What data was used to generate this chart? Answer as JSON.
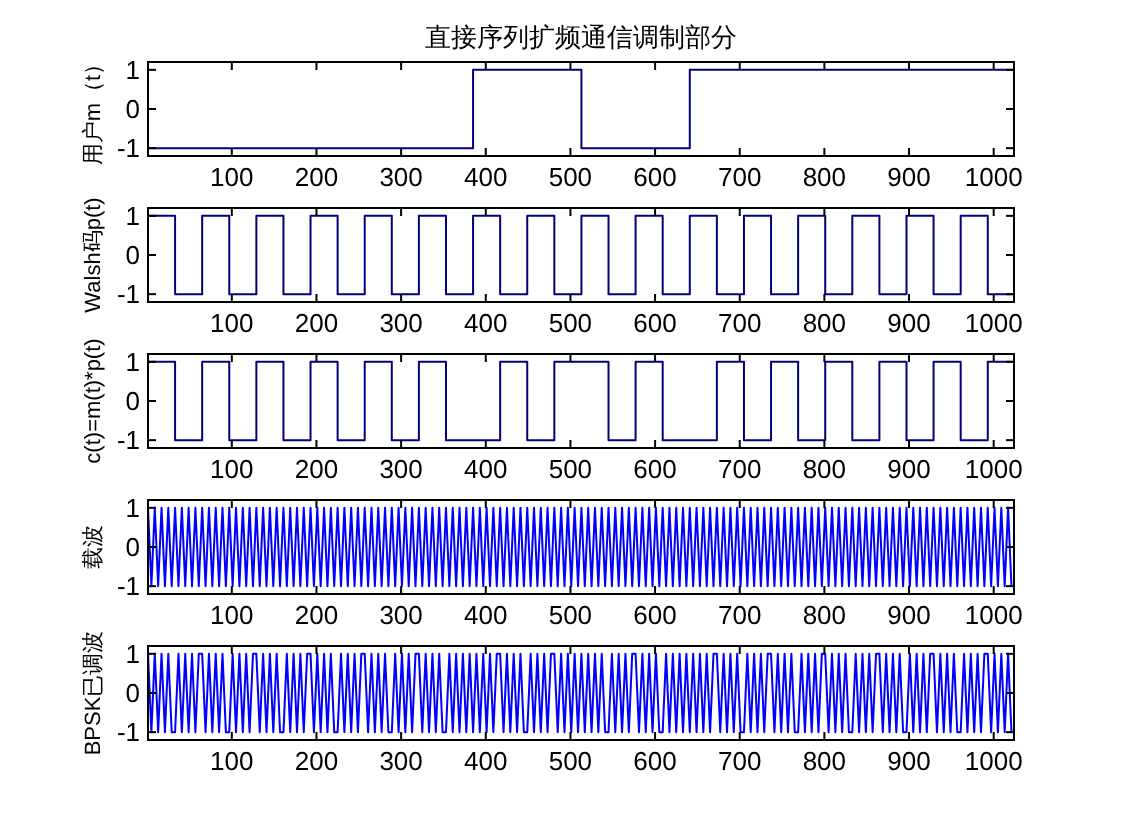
{
  "chart_data": [
    {
      "type": "step",
      "title": "直接序列扩频通信调制部分",
      "ylabel": "用户m（t）",
      "color": "#00007f",
      "xlim": [
        1,
        1024
      ],
      "xticks": [
        100,
        200,
        300,
        400,
        500,
        600,
        700,
        800,
        900,
        1000
      ],
      "ylim": [
        -1.2,
        1.2
      ],
      "yticks": [
        -1,
        0,
        1
      ],
      "x": [
        1,
        385,
        513,
        641,
        1024
      ],
      "values": [
        -1,
        1,
        -1,
        1,
        1
      ]
    },
    {
      "type": "step",
      "ylabel": "Walsh码p(t)",
      "color": "#00007f",
      "xlim": [
        1,
        1024
      ],
      "xticks": [
        100,
        200,
        300,
        400,
        500,
        600,
        700,
        800,
        900,
        1000
      ],
      "ylim": [
        -1.2,
        1.2
      ],
      "yticks": [
        -1,
        0,
        1
      ],
      "x": [
        1,
        33,
        65,
        97,
        129,
        161,
        193,
        225,
        257,
        289,
        321,
        353,
        385,
        417,
        449,
        481,
        513,
        545,
        577,
        609,
        641,
        673,
        705,
        737,
        769,
        801,
        833,
        865,
        897,
        929,
        961,
        993,
        1024
      ],
      "values": [
        1,
        -1,
        1,
        -1,
        1,
        -1,
        1,
        -1,
        1,
        -1,
        1,
        -1,
        1,
        -1,
        1,
        -1,
        1,
        -1,
        1,
        -1,
        1,
        -1,
        1,
        -1,
        1,
        -1,
        1,
        -1,
        1,
        -1,
        1,
        -1,
        -1
      ]
    },
    {
      "type": "step",
      "ylabel": "c(t)=m(t)*p(t)",
      "color": "#00007f",
      "xlim": [
        1,
        1024
      ],
      "xticks": [
        100,
        200,
        300,
        400,
        500,
        600,
        700,
        800,
        900,
        1000
      ],
      "ylim": [
        -1.2,
        1.2
      ],
      "yticks": [
        -1,
        0,
        1
      ],
      "x": [
        1,
        33,
        65,
        97,
        129,
        161,
        193,
        225,
        257,
        289,
        321,
        353,
        417,
        449,
        481,
        545,
        577,
        609,
        673,
        705,
        737,
        769,
        801,
        833,
        865,
        897,
        929,
        961,
        993,
        1024
      ],
      "values": [
        1,
        -1,
        1,
        -1,
        1,
        -1,
        1,
        -1,
        1,
        -1,
        1,
        -1,
        1,
        -1,
        1,
        -1,
        1,
        -1,
        1,
        -1,
        1,
        -1,
        1,
        -1,
        1,
        -1,
        1,
        -1,
        1,
        1
      ]
    },
    {
      "type": "line",
      "ylabel": "载波",
      "color": "#0000ff",
      "xlim": [
        1,
        1024
      ],
      "xticks": [
        100,
        200,
        300,
        400,
        500,
        600,
        700,
        800,
        900,
        1000
      ],
      "ylim": [
        -1.2,
        1.2
      ],
      "yticks": [
        -1,
        0,
        1
      ],
      "x": [
        1,
        5,
        9,
        13,
        17,
        21,
        25,
        29,
        33,
        37,
        41,
        45,
        49,
        53,
        57,
        61,
        65,
        69,
        73,
        77,
        81,
        85,
        89,
        93,
        97,
        101,
        105,
        109,
        113,
        117,
        121,
        125,
        129,
        133,
        137,
        141,
        145,
        149,
        153,
        157,
        161,
        165,
        169,
        173,
        177,
        181,
        185,
        189,
        193,
        197,
        201,
        205,
        209,
        213,
        217,
        221,
        225,
        229,
        233,
        237,
        241,
        245,
        249,
        253,
        257,
        261,
        265,
        269,
        273,
        277,
        281,
        285,
        289,
        293,
        297,
        301,
        305,
        309,
        313,
        317,
        321,
        325,
        329,
        333,
        337,
        341,
        345,
        349,
        353,
        357,
        361,
        365,
        369,
        373,
        377,
        381,
        385,
        389,
        393,
        397,
        401,
        405,
        409,
        413,
        417,
        421,
        425,
        429,
        433,
        437,
        441,
        445,
        449,
        453,
        457,
        461,
        465,
        469,
        473,
        477,
        481,
        485,
        489,
        493,
        497,
        501,
        505,
        509,
        513,
        517,
        521,
        525,
        529,
        533,
        537,
        541,
        545,
        549,
        553,
        557,
        561,
        565,
        569,
        573,
        577,
        581,
        585,
        589,
        593,
        597,
        601,
        605,
        609,
        613,
        617,
        621,
        625,
        629,
        633,
        637,
        641,
        645,
        649,
        653,
        657,
        661,
        665,
        669,
        673,
        677,
        681,
        685,
        689,
        693,
        697,
        701,
        705,
        709,
        713,
        717,
        721,
        725,
        729,
        733,
        737,
        741,
        745,
        749,
        753,
        757,
        761,
        765,
        769,
        773,
        777,
        781,
        785,
        789,
        793,
        797,
        801,
        805,
        809,
        813,
        817,
        821,
        825,
        829,
        833,
        837,
        841,
        845,
        849,
        853,
        857,
        861,
        865,
        869,
        873,
        877,
        881,
        885,
        889,
        893,
        897,
        901,
        905,
        909,
        913,
        917,
        921,
        925,
        929,
        933,
        937,
        941,
        945,
        949,
        953,
        957,
        961,
        965,
        969,
        973,
        977,
        981,
        985,
        989,
        993,
        997,
        1001,
        1005,
        1009,
        1013,
        1017,
        1021
      ],
      "values": [
        1,
        -1,
        1,
        -1,
        1,
        -1,
        1,
        -1,
        1,
        -1,
        1,
        -1,
        1,
        -1,
        1,
        -1,
        1,
        -1,
        1,
        -1,
        1,
        -1,
        1,
        -1,
        1,
        -1,
        1,
        -1,
        1,
        -1,
        1,
        -1,
        1,
        -1,
        1,
        -1,
        1,
        -1,
        1,
        -1,
        1,
        -1,
        1,
        -1,
        1,
        -1,
        1,
        -1,
        1,
        -1,
        1,
        -1,
        1,
        -1,
        1,
        -1,
        1,
        -1,
        1,
        -1,
        1,
        -1,
        1,
        -1,
        1,
        -1,
        1,
        -1,
        1,
        -1,
        1,
        -1,
        1,
        -1,
        1,
        -1,
        1,
        -1,
        1,
        -1,
        1,
        -1,
        1,
        -1,
        1,
        -1,
        1,
        -1,
        1,
        -1,
        1,
        -1,
        1,
        -1,
        1,
        -1,
        1,
        -1,
        1,
        -1,
        1,
        -1,
        1,
        -1,
        1,
        -1,
        1,
        -1,
        1,
        -1,
        1,
        -1,
        1,
        -1,
        1,
        -1,
        1,
        -1,
        1,
        -1,
        1,
        -1,
        1,
        -1,
        1,
        -1,
        1,
        -1,
        1,
        -1,
        1,
        -1,
        1,
        -1,
        1,
        -1,
        1,
        -1,
        1,
        -1,
        1,
        -1,
        1,
        -1,
        1,
        -1,
        1,
        -1,
        1,
        -1,
        1,
        -1,
        1,
        -1,
        1,
        -1,
        1,
        -1,
        1,
        -1,
        1,
        -1,
        1,
        -1,
        1,
        -1,
        1,
        -1,
        1,
        -1,
        1,
        -1,
        1,
        -1,
        1,
        -1,
        1,
        -1,
        1,
        -1,
        1,
        -1,
        1,
        -1,
        1,
        -1,
        1,
        -1,
        1,
        -1,
        1,
        -1,
        1,
        -1,
        1,
        -1,
        1,
        -1,
        1,
        -1,
        1,
        -1,
        1,
        -1,
        1,
        -1,
        1,
        -1,
        1,
        -1,
        1,
        -1,
        1,
        -1,
        1,
        -1,
        1,
        -1,
        1,
        -1,
        1,
        -1,
        1,
        -1,
        1,
        -1,
        1,
        -1,
        1,
        -1,
        1,
        -1,
        1,
        -1,
        1,
        -1,
        1,
        -1,
        1,
        -1,
        1,
        -1,
        1,
        -1,
        1,
        -1,
        1,
        -1,
        1,
        -1,
        1,
        -1,
        1,
        -1,
        1,
        -1
      ]
    },
    {
      "type": "line",
      "ylabel": "BPSK已调波",
      "color": "#0000ff",
      "xlim": [
        1,
        1024
      ],
      "xticks": [
        100,
        200,
        300,
        400,
        500,
        600,
        700,
        800,
        900,
        1000
      ],
      "ylim": [
        -1.2,
        1.2
      ],
      "yticks": [
        -1,
        0,
        1
      ],
      "x": [
        1,
        5,
        9,
        13,
        17,
        21,
        25,
        29,
        33,
        37,
        41,
        45,
        49,
        53,
        57,
        61,
        65,
        69,
        73,
        77,
        81,
        85,
        89,
        93,
        97,
        101,
        105,
        109,
        113,
        117,
        121,
        125,
        129,
        133,
        137,
        141,
        145,
        149,
        153,
        157,
        161,
        165,
        169,
        173,
        177,
        181,
        185,
        189,
        193,
        197,
        201,
        205,
        209,
        213,
        217,
        221,
        225,
        229,
        233,
        237,
        241,
        245,
        249,
        253,
        257,
        261,
        265,
        269,
        273,
        277,
        281,
        285,
        289,
        293,
        297,
        301,
        305,
        309,
        313,
        317,
        321,
        325,
        329,
        333,
        337,
        341,
        345,
        349,
        353,
        357,
        361,
        365,
        369,
        373,
        377,
        381,
        385,
        389,
        393,
        397,
        401,
        405,
        409,
        413,
        417,
        421,
        425,
        429,
        433,
        437,
        441,
        445,
        449,
        453,
        457,
        461,
        465,
        469,
        473,
        477,
        481,
        485,
        489,
        493,
        497,
        501,
        505,
        509,
        513,
        517,
        521,
        525,
        529,
        533,
        537,
        541,
        545,
        549,
        553,
        557,
        561,
        565,
        569,
        573,
        577,
        581,
        585,
        589,
        593,
        597,
        601,
        605,
        609,
        613,
        617,
        621,
        625,
        629,
        633,
        637,
        641,
        645,
        649,
        653,
        657,
        661,
        665,
        669,
        673,
        677,
        681,
        685,
        689,
        693,
        697,
        701,
        705,
        709,
        713,
        717,
        721,
        725,
        729,
        733,
        737,
        741,
        745,
        749,
        753,
        757,
        761,
        765,
        769,
        773,
        777,
        781,
        785,
        789,
        793,
        797,
        801,
        805,
        809,
        813,
        817,
        821,
        825,
        829,
        833,
        837,
        841,
        845,
        849,
        853,
        857,
        861,
        865,
        869,
        873,
        877,
        881,
        885,
        889,
        893,
        897,
        901,
        905,
        909,
        913,
        917,
        921,
        925,
        929,
        933,
        937,
        941,
        945,
        949,
        953,
        957,
        961,
        965,
        969,
        973,
        977,
        981,
        985,
        989,
        993,
        997,
        1001,
        1005,
        1009,
        1013,
        1017,
        1021
      ],
      "values": [
        1,
        -1,
        1,
        -1,
        1,
        -1,
        1,
        -1,
        -1,
        1,
        -1,
        1,
        -1,
        1,
        -1,
        1,
        1,
        -1,
        1,
        -1,
        1,
        -1,
        1,
        -1,
        -1,
        1,
        -1,
        1,
        -1,
        1,
        -1,
        1,
        1,
        -1,
        1,
        -1,
        1,
        -1,
        1,
        -1,
        -1,
        1,
        -1,
        1,
        -1,
        1,
        -1,
        1,
        1,
        -1,
        1,
        -1,
        1,
        -1,
        1,
        -1,
        -1,
        1,
        -1,
        1,
        -1,
        1,
        -1,
        1,
        1,
        -1,
        1,
        -1,
        1,
        -1,
        1,
        -1,
        -1,
        1,
        -1,
        1,
        -1,
        1,
        -1,
        1,
        1,
        -1,
        1,
        -1,
        1,
        -1,
        1,
        -1,
        -1,
        1,
        -1,
        1,
        -1,
        1,
        -1,
        1,
        -1,
        1,
        -1,
        1,
        -1,
        1,
        -1,
        1,
        1,
        -1,
        1,
        -1,
        1,
        -1,
        1,
        -1,
        -1,
        1,
        -1,
        1,
        -1,
        1,
        -1,
        1,
        1,
        -1,
        1,
        -1,
        1,
        -1,
        1,
        -1,
        1,
        -1,
        1,
        -1,
        1,
        -1,
        1,
        -1,
        -1,
        1,
        -1,
        1,
        -1,
        1,
        -1,
        1,
        1,
        -1,
        1,
        -1,
        1,
        -1,
        1,
        -1,
        -1,
        1,
        -1,
        1,
        -1,
        1,
        -1,
        1,
        -1,
        1,
        -1,
        1,
        -1,
        1,
        -1,
        1,
        1,
        -1,
        1,
        -1,
        1,
        -1,
        1,
        -1,
        -1,
        1,
        -1,
        1,
        -1,
        1,
        -1,
        1,
        1,
        -1,
        1,
        -1,
        1,
        -1,
        1,
        -1,
        -1,
        1,
        -1,
        1,
        -1,
        1,
        -1,
        1,
        1,
        -1,
        1,
        -1,
        1,
        -1,
        1,
        -1,
        -1,
        1,
        -1,
        1,
        -1,
        1,
        -1,
        1,
        1,
        -1,
        1,
        -1,
        1,
        -1,
        1,
        -1,
        -1,
        1,
        -1,
        1,
        -1,
        1,
        -1,
        1,
        1,
        -1,
        1,
        -1,
        1,
        -1,
        1,
        -1,
        -1,
        1,
        -1,
        1,
        -1,
        1,
        -1,
        1,
        1,
        -1,
        1,
        -1,
        1,
        -1,
        1,
        -1
      ]
    }
  ]
}
